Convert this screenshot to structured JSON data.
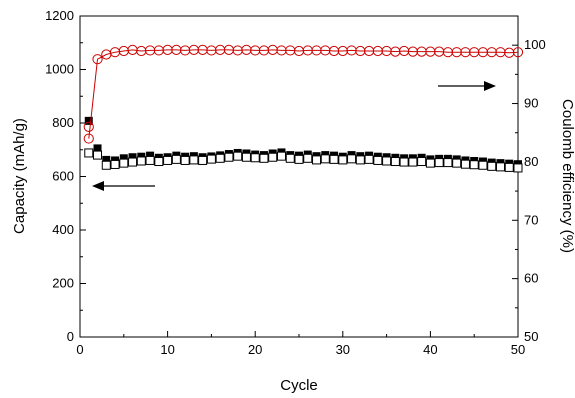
{
  "chart_data": {
    "type": "scatter",
    "title": "",
    "xlabel": "Cycle",
    "ylabel": "Capacity (mAh/g)",
    "y2label": "Coulomb efficiency (%)",
    "xlim": [
      0,
      50
    ],
    "ylim": [
      0,
      1200
    ],
    "y2lim": [
      50,
      105
    ],
    "x_ticks": [
      "0",
      "10",
      "20",
      "30",
      "40",
      "50"
    ],
    "y_ticks": [
      "0",
      "200",
      "400",
      "600",
      "800",
      "1000",
      "1200"
    ],
    "y2_ticks": [
      "50",
      "60",
      "70",
      "80",
      "90",
      "100"
    ],
    "grid": false,
    "series": [
      {
        "axis": "left",
        "marker": "filled-square",
        "color": "#000000",
        "x": [
          1,
          2,
          3,
          4,
          5,
          6,
          7,
          8,
          9,
          10,
          11,
          12,
          13,
          14,
          15,
          16,
          17,
          18,
          19,
          20,
          21,
          22,
          23,
          24,
          25,
          26,
          27,
          28,
          29,
          30,
          31,
          32,
          33,
          34,
          35,
          36,
          37,
          38,
          39,
          40,
          41,
          42,
          43,
          44,
          45,
          46,
          47,
          48,
          49,
          50
        ],
        "values": [
          808,
          705,
          662,
          660,
          668,
          672,
          674,
          678,
          670,
          672,
          678,
          674,
          676,
          672,
          675,
          679,
          684,
          688,
          686,
          682,
          680,
          686,
          690,
          680,
          678,
          682,
          676,
          680,
          678,
          674,
          680,
          676,
          678,
          674,
          672,
          670,
          668,
          668,
          670,
          664,
          666,
          666,
          664,
          660,
          658,
          656,
          652,
          650,
          648,
          646
        ]
      },
      {
        "axis": "left",
        "marker": "open-square",
        "color": "#000000",
        "x": [
          1,
          2,
          3,
          4,
          5,
          6,
          7,
          8,
          9,
          10,
          11,
          12,
          13,
          14,
          15,
          16,
          17,
          18,
          19,
          20,
          21,
          22,
          23,
          24,
          25,
          26,
          27,
          28,
          29,
          30,
          31,
          32,
          33,
          34,
          35,
          36,
          37,
          38,
          39,
          40,
          41,
          42,
          43,
          44,
          45,
          46,
          47,
          48,
          49,
          50
        ],
        "values": [
          688,
          680,
          642,
          645,
          650,
          654,
          658,
          660,
          656,
          660,
          664,
          660,
          662,
          660,
          665,
          668,
          672,
          676,
          672,
          670,
          668,
          672,
          676,
          668,
          664,
          668,
          662,
          666,
          664,
          662,
          666,
          662,
          664,
          660,
          658,
          656,
          654,
          654,
          656,
          650,
          652,
          652,
          650,
          646,
          644,
          642,
          638,
          636,
          634,
          632
        ]
      },
      {
        "axis": "right",
        "marker": "open-circle",
        "color": "#cc0000",
        "x": [
          1,
          2,
          3,
          4,
          5,
          6,
          7,
          8,
          9,
          10,
          11,
          12,
          13,
          14,
          15,
          16,
          17,
          18,
          19,
          20,
          21,
          22,
          23,
          24,
          25,
          26,
          27,
          28,
          29,
          30,
          31,
          32,
          33,
          34,
          35,
          36,
          37,
          38,
          39,
          40,
          41,
          42,
          43,
          44,
          45,
          46,
          47,
          48,
          49,
          50
        ],
        "values": [
          84,
          97.6,
          98.4,
          98.8,
          99.0,
          99.2,
          99.0,
          99.1,
          99.1,
          99.2,
          99.2,
          99.1,
          99.2,
          99.2,
          99.1,
          99.2,
          99.2,
          99.1,
          99.2,
          99.1,
          99.1,
          99.2,
          99.1,
          99.1,
          99.0,
          99.1,
          99.1,
          99.1,
          99.0,
          99.0,
          99.1,
          99.0,
          99.0,
          99.0,
          99.0,
          98.9,
          99.0,
          98.9,
          98.9,
          98.9,
          98.9,
          98.8,
          98.8,
          98.8,
          98.8,
          98.8,
          98.8,
          98.8,
          98.7,
          98.8
        ]
      },
      {
        "axis": "right",
        "marker": "open-circle",
        "color": "#cc0000",
        "x": [
          1
        ],
        "values": [
          86
        ]
      }
    ],
    "annotations": [
      {
        "type": "arrow",
        "direction": "left",
        "points_to": "left-axis"
      },
      {
        "type": "arrow",
        "direction": "right",
        "points_to": "right-axis"
      }
    ]
  }
}
